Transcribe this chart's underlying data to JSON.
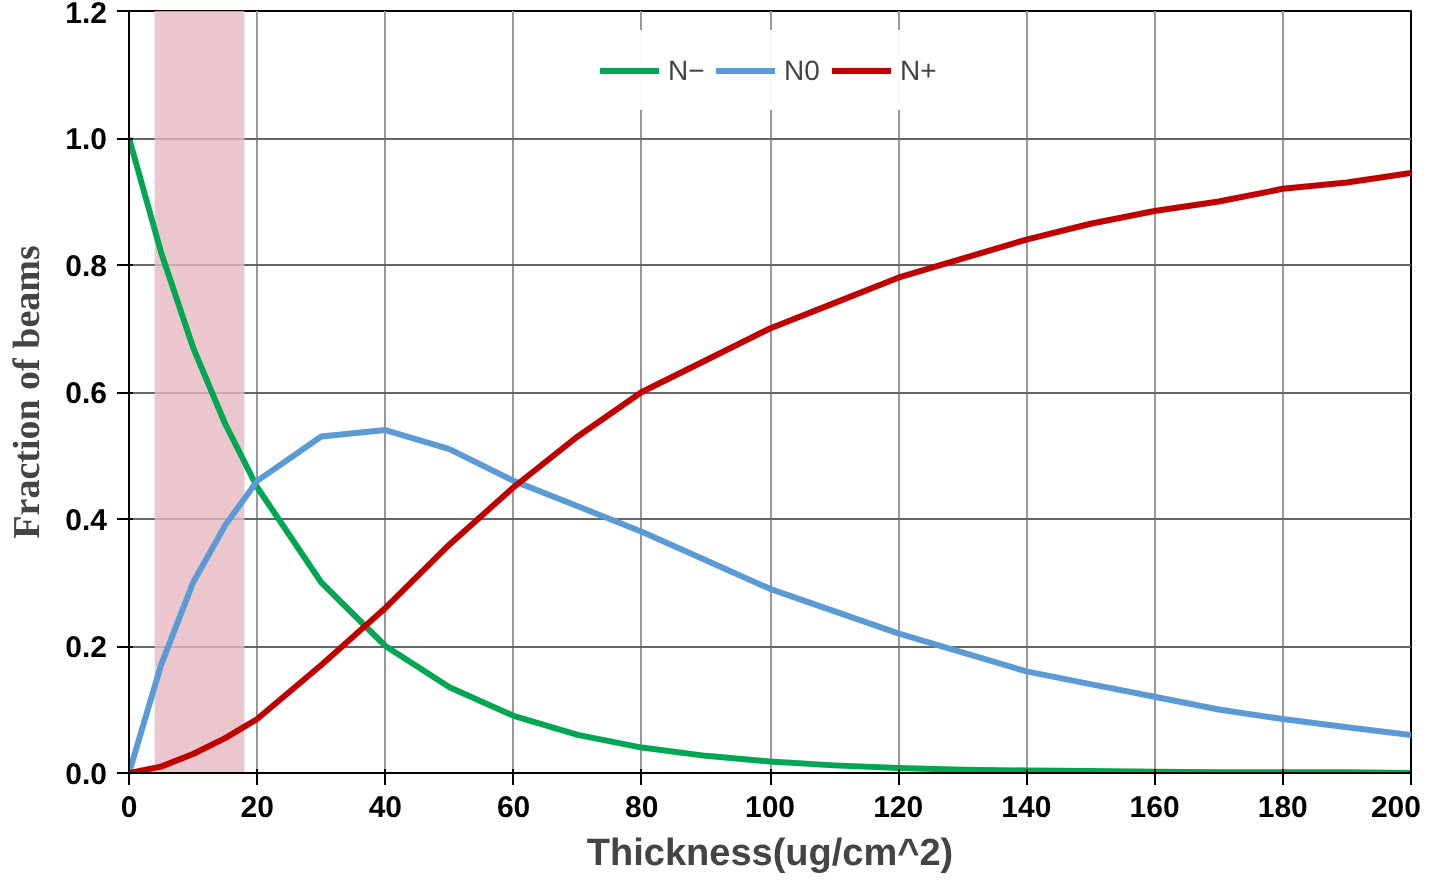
{
  "chart_data": {
    "type": "line",
    "xlabel": "Thickness(ug/cm^2)",
    "ylabel": "Fraction of beams",
    "x": [
      0,
      5,
      10,
      15,
      20,
      30,
      40,
      50,
      60,
      70,
      80,
      90,
      100,
      110,
      120,
      130,
      140,
      150,
      160,
      170,
      180,
      190,
      200
    ],
    "series": [
      {
        "name": "N−",
        "color": "#00a651",
        "values": [
          1,
          0.82,
          0.67,
          0.55,
          0.45,
          0.3,
          0.2,
          0.135,
          0.09,
          0.06,
          0.04,
          0.027,
          0.018,
          0.012,
          0.008,
          0.005,
          0.004,
          0.003,
          0.002,
          0.001,
          0.001,
          0.001,
          0
        ]
      },
      {
        "name": "N0",
        "color": "#5b9bd5",
        "values": [
          0,
          0.17,
          0.3,
          0.39,
          0.46,
          0.53,
          0.54,
          0.51,
          0.46,
          0.42,
          0.38,
          0.335,
          0.29,
          0.255,
          0.22,
          0.19,
          0.16,
          0.14,
          0.12,
          0.1,
          0.085,
          0.072,
          0.06
        ]
      },
      {
        "name": "N+",
        "color": "#c00000",
        "values": [
          0,
          0.01,
          0.03,
          0.055,
          0.085,
          0.17,
          0.26,
          0.36,
          0.45,
          0.53,
          0.6,
          0.65,
          0.7,
          0.74,
          0.78,
          0.81,
          0.84,
          0.865,
          0.885,
          0.9,
          0.92,
          0.93,
          0.945
        ]
      }
    ],
    "xlim": [
      0,
      200
    ],
    "xticks": [
      0,
      20,
      40,
      60,
      80,
      100,
      120,
      140,
      160,
      180,
      200
    ],
    "ylim": [
      0,
      1.2
    ],
    "yticks": [
      {
        "value": 0,
        "label": "0.0"
      },
      {
        "value": 0.2,
        "label": "0.2"
      },
      {
        "value": 0.4,
        "label": "0.4"
      },
      {
        "value": 0.6,
        "label": "0.6"
      },
      {
        "value": 0.8,
        "label": "0.8"
      },
      {
        "value": 1.0,
        "label": "1.0"
      },
      {
        "value": 1.2,
        "label": "1.2"
      }
    ],
    "bands": [
      {
        "axis": "x",
        "from": 4,
        "to": 18,
        "label": null,
        "color": "#e6b8c0"
      }
    ],
    "grid": true,
    "legend": "top",
    "marker": "none",
    "line_style": "solid"
  }
}
